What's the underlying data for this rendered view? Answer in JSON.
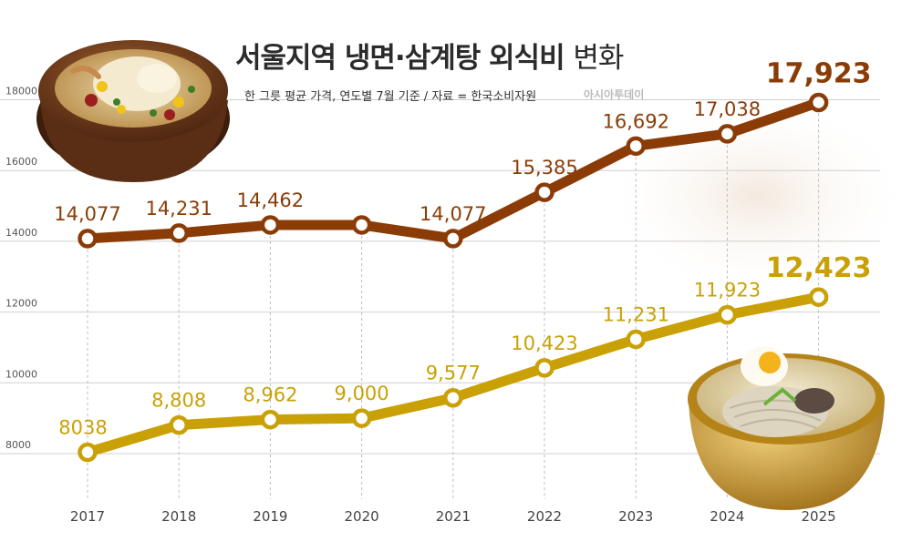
{
  "header": {
    "title_main": "서울지역 냉면·삼계탕 외식비",
    "title_suffix": "변화",
    "subtitle": "한 그릇 평균 가격, 연도별 7월 기준 / 자료 = 한국소비자원",
    "watermark": "아시아투데이"
  },
  "chart_data": {
    "type": "line",
    "x": [
      "2017",
      "2018",
      "2019",
      "2020",
      "2021",
      "2022",
      "2023",
      "2024",
      "2025"
    ],
    "ylim": [
      6800,
      18800
    ],
    "yticks": [
      8000,
      10000,
      12000,
      14000,
      16000,
      18000
    ],
    "grid": true,
    "series": [
      {
        "values": [
          14077,
          14231,
          14462,
          14462,
          14077,
          15385,
          16692,
          17038,
          17923
        ],
        "labels": [
          "14,077",
          "14,231",
          "14,462",
          "",
          "14,077",
          "15,385",
          "16,692",
          "17,038",
          "17,923"
        ],
        "color": "#8b3c06"
      },
      {
        "values": [
          8038,
          8808,
          8962,
          9000,
          9577,
          10423,
          11231,
          11923,
          12423
        ],
        "labels": [
          "8038",
          "8,808",
          "8,962",
          "9,000",
          "9,577",
          "10,423",
          "11,231",
          "11,923",
          "12,423"
        ],
        "color": "#c9a106"
      }
    ]
  },
  "illustrations": [
    "samgyetang-bowl",
    "naengmyeon-bowl"
  ]
}
